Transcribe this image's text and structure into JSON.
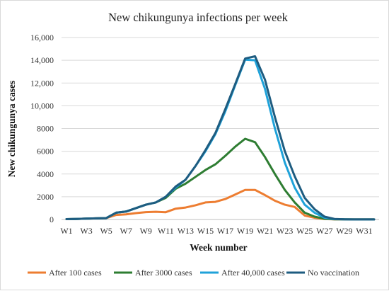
{
  "chart_data": {
    "type": "line",
    "title": "New chikungunya infections per week",
    "xlabel": "Week number",
    "ylabel": "New chikungunya cases",
    "ylim": [
      0,
      16000
    ],
    "yticks": [
      "0",
      "2000",
      "4000",
      "6000",
      "8000",
      "10,000",
      "12,000",
      "14,000",
      "16,000"
    ],
    "x_tick_labels": [
      "W1",
      "W3",
      "W5",
      "W7",
      "W9",
      "W11",
      "W13",
      "W15",
      "W17",
      "W19",
      "W21",
      "W23",
      "W25",
      "W27",
      "W29",
      "W31"
    ],
    "categories": [
      "W1",
      "W2",
      "W3",
      "W4",
      "W5",
      "W6",
      "W7",
      "W8",
      "W9",
      "W10",
      "W11",
      "W12",
      "W13",
      "W14",
      "W15",
      "W16",
      "W17",
      "W18",
      "W19",
      "W20",
      "W21",
      "W22",
      "W23",
      "W24",
      "W25",
      "W26",
      "W27",
      "W28",
      "W29",
      "W30",
      "W31",
      "W32"
    ],
    "grid": true,
    "legend_position": "bottom",
    "series": [
      {
        "name": "After 100 cases",
        "color": "#ed7d31",
        "values": [
          30,
          50,
          80,
          100,
          120,
          400,
          450,
          560,
          650,
          680,
          640,
          950,
          1050,
          1250,
          1500,
          1550,
          1800,
          2200,
          2600,
          2600,
          2150,
          1650,
          1300,
          1100,
          350,
          150,
          40,
          15,
          10,
          5,
          5,
          5
        ]
      },
      {
        "name": "After 3000 cases",
        "color": "#2e7d32",
        "values": [
          30,
          50,
          80,
          100,
          120,
          600,
          700,
          1000,
          1300,
          1500,
          1900,
          2700,
          3150,
          3750,
          4350,
          4850,
          5600,
          6400,
          7100,
          6800,
          5500,
          4000,
          2600,
          1500,
          600,
          250,
          60,
          20,
          10,
          5,
          5,
          5
        ]
      },
      {
        "name": "After 40,000 cases",
        "color": "#1fa2d9",
        "values": [
          30,
          50,
          80,
          100,
          120,
          600,
          700,
          1000,
          1300,
          1500,
          2000,
          2800,
          3500,
          4700,
          6000,
          7500,
          9500,
          11800,
          14050,
          14000,
          11500,
          8000,
          5000,
          2800,
          1300,
          600,
          150,
          30,
          10,
          5,
          5,
          5
        ]
      },
      {
        "name": "No vaccination",
        "color": "#1e5c80",
        "values": [
          30,
          50,
          80,
          100,
          120,
          600,
          700,
          1000,
          1300,
          1500,
          2000,
          2900,
          3500,
          4700,
          6100,
          7600,
          9700,
          11900,
          14150,
          14350,
          12300,
          9000,
          6000,
          3800,
          1900,
          900,
          250,
          50,
          15,
          5,
          5,
          5
        ]
      }
    ]
  }
}
